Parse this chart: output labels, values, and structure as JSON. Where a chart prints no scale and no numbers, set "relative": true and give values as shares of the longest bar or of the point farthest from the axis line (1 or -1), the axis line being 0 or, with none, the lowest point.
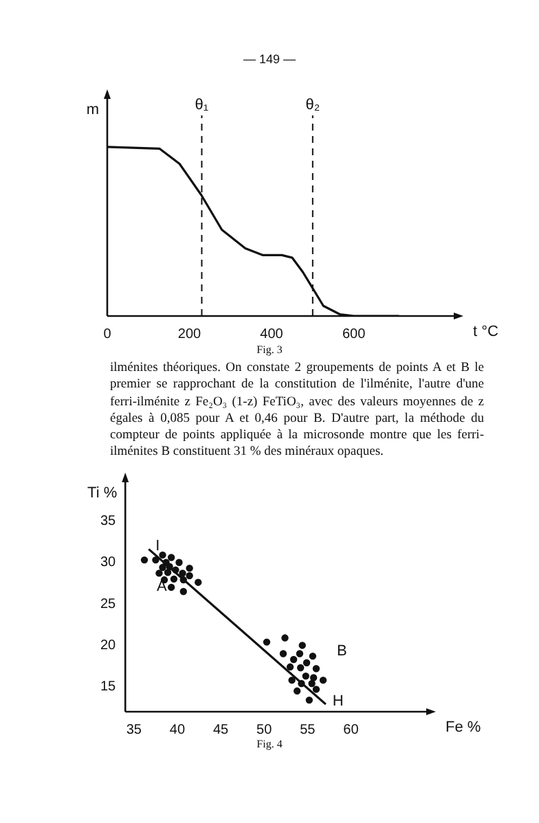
{
  "chart_data": [
    {
      "type": "line",
      "title": "Fig. 3",
      "xlabel": "t °C",
      "ylabel": "m",
      "relative": true,
      "xlim": [
        0,
        850
      ],
      "xticks": [
        0,
        200,
        400,
        600
      ],
      "tick_labels": "x",
      "grid": false,
      "legend": false,
      "marker": "none",
      "annotations": [
        "— 149 —",
        "ilménites théoriques. On constate 2 groupements de points A et B le premier se rapprochant de la constitution de l'ilménite, l'autre d'une ferri-ilménite z Fe₂O₃ (1-z) FeTiO₃, avec des valeurs moyennes de z égales à 0,085 pour A et 0,46 pour B. D'autre part, la méthode du compteur de points appliquée à la microsonde montre que les ferri-ilménites B constituent 31 % des minéraux opaques."
      ],
      "ref_lines": [
        {
          "axis": "x",
          "value": 230,
          "label": "θ₁",
          "line_style": "dashed"
        },
        {
          "axis": "x",
          "value": 500,
          "label": "θ₂",
          "line_style": "dashed"
        }
      ],
      "series": [
        {
          "color": "#111111",
          "x": [
            0,
            127,
            176,
            229,
            279,
            336,
            379,
            425,
            450,
            476,
            496,
            526,
            566,
            600,
            710
          ],
          "values": [
            1,
            0.99,
            0.9,
            0.715,
            0.51,
            0.4,
            0.36,
            0.36,
            0.345,
            0.26,
            0.18,
            0.06,
            0.01,
            0,
            0
          ]
        }
      ]
    },
    {
      "type": "scatter",
      "title": "Fig. 4",
      "xlabel": "Fe %",
      "ylabel": "Ti %",
      "xlim": [
        34,
        69
      ],
      "ylim": [
        12,
        40
      ],
      "xticks": [
        35,
        40,
        45,
        50,
        55,
        60
      ],
      "yticks": [
        15,
        20,
        25,
        30,
        35
      ],
      "grid": false,
      "legend": false,
      "marker": "circle",
      "annotations": [
        {
          "text": "I",
          "x": 36.7,
          "y": 31.6
        },
        {
          "text": "H",
          "x": 57.1,
          "y": 12.9
        },
        "A",
        "B"
      ],
      "series": [
        {
          "color": "#111111",
          "x": [
            36.2,
            37.5,
            38.3,
            39.3,
            40.2,
            38.7,
            38.3,
            39.1,
            39.8,
            41.4,
            37.9,
            38.9,
            40.6,
            41.4,
            38.5,
            39.6,
            40.7,
            42.4,
            39.3,
            40.7
          ],
          "values": [
            30.3,
            30.3,
            30.9,
            30.6,
            30.0,
            30.0,
            29.4,
            29.5,
            29.1,
            29.3,
            28.7,
            28.8,
            28.7,
            28.4,
            27.9,
            28.0,
            27.9,
            27.6,
            27.0,
            26.5
          ]
        },
        {
          "color": "#111111",
          "x": [
            50.3,
            52.4,
            54.4,
            52.2,
            54.1,
            55.6,
            53.4,
            54.9,
            53.0,
            54.2,
            56.0,
            54.8,
            55.7,
            53.2,
            56.8,
            54.3,
            55.5,
            56.0,
            53.8,
            55.2
          ],
          "values": [
            20.4,
            20.9,
            20.0,
            19.0,
            19.0,
            18.7,
            18.3,
            17.9,
            17.4,
            17.3,
            17.2,
            16.3,
            16.1,
            15.8,
            15.8,
            15.4,
            15.4,
            14.7,
            14.5,
            13.4
          ]
        },
        {
          "type": "line",
          "marker": "none",
          "color": "#111111",
          "x": [
            36.7,
            57.1
          ],
          "values": [
            31.6,
            12.9
          ]
        }
      ]
    }
  ]
}
